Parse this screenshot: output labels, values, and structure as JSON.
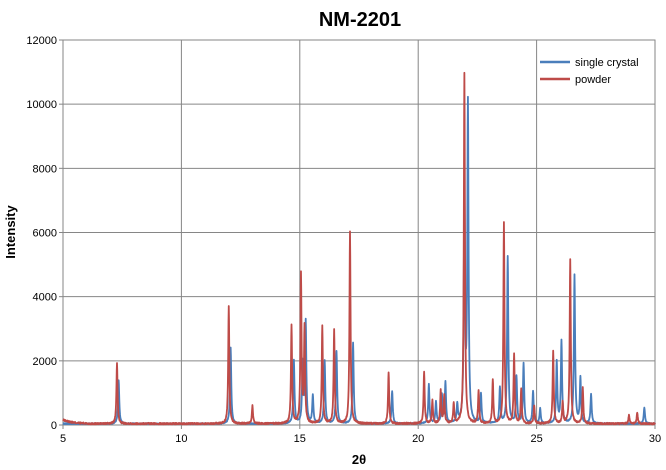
{
  "chart_data": {
    "type": "line",
    "title": "NM-2201",
    "xlabel": "2θ",
    "ylabel": "Intensity",
    "xlim": [
      5,
      30
    ],
    "ylim": [
      0,
      12000
    ],
    "xticks": [
      5,
      10,
      15,
      20,
      25,
      30
    ],
    "yticks": [
      0,
      2000,
      4000,
      6000,
      8000,
      10000,
      12000
    ],
    "grid": true,
    "legend_position": "top-right",
    "baseline": 40,
    "series": [
      {
        "name": "single crystal",
        "color": "#4a7ebb",
        "peaks": [
          [
            7.35,
            1400
          ],
          [
            12.08,
            2400
          ],
          [
            14.75,
            2000
          ],
          [
            15.12,
            1900
          ],
          [
            15.25,
            3200
          ],
          [
            15.55,
            900
          ],
          [
            16.05,
            2000
          ],
          [
            16.55,
            2300
          ],
          [
            17.25,
            2550
          ],
          [
            18.9,
            1050
          ],
          [
            20.45,
            1250
          ],
          [
            20.75,
            700
          ],
          [
            21.0,
            900
          ],
          [
            21.15,
            1300
          ],
          [
            21.65,
            600
          ],
          [
            21.95,
            7200
          ],
          [
            22.1,
            9950
          ],
          [
            22.65,
            950
          ],
          [
            23.45,
            1150
          ],
          [
            23.78,
            5250
          ],
          [
            24.15,
            1500
          ],
          [
            24.45,
            1900
          ],
          [
            24.85,
            1050
          ],
          [
            25.15,
            500
          ],
          [
            25.85,
            1950
          ],
          [
            26.05,
            2600
          ],
          [
            26.6,
            4650
          ],
          [
            26.85,
            1450
          ],
          [
            27.3,
            950
          ],
          [
            29.55,
            550
          ]
        ]
      },
      {
        "name": "powder",
        "color": "#be4b48",
        "peaks": [
          [
            7.28,
            1950
          ],
          [
            12.0,
            3700
          ],
          [
            13.0,
            600
          ],
          [
            14.65,
            3100
          ],
          [
            15.05,
            4650
          ],
          [
            15.2,
            3000
          ],
          [
            15.95,
            3100
          ],
          [
            16.45,
            2950
          ],
          [
            17.12,
            6000
          ],
          [
            18.75,
            1650
          ],
          [
            20.25,
            1650
          ],
          [
            20.6,
            750
          ],
          [
            20.95,
            1050
          ],
          [
            21.1,
            900
          ],
          [
            21.5,
            650
          ],
          [
            21.95,
            10950
          ],
          [
            22.55,
            1050
          ],
          [
            23.15,
            1400
          ],
          [
            23.62,
            6300
          ],
          [
            24.05,
            2200
          ],
          [
            24.35,
            1100
          ],
          [
            24.9,
            600
          ],
          [
            25.7,
            2300
          ],
          [
            26.1,
            700
          ],
          [
            26.42,
            5150
          ],
          [
            26.95,
            1150
          ],
          [
            28.9,
            300
          ],
          [
            29.25,
            400
          ]
        ]
      }
    ]
  }
}
